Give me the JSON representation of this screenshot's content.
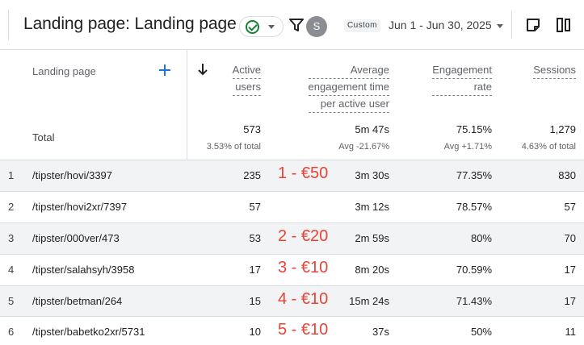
{
  "header": {
    "title": "Landing page: Landing page",
    "avatar_letter": "S",
    "custom_label": "Custom",
    "date_range": "Jun 1 - Jun 30, 2025",
    "accent_color": "#1a73e8",
    "status_color": "#188038"
  },
  "columns": {
    "landing_page": "Landing page",
    "active_users": [
      "Active",
      "users"
    ],
    "avg_engagement": [
      "Average",
      "engagement time",
      "per active user"
    ],
    "engagement_rate": [
      "Engagement",
      "rate"
    ],
    "sessions": [
      "Sessions"
    ]
  },
  "totals": {
    "label": "Total",
    "active_users": "573",
    "active_users_sub": "3.53% of total",
    "avg_engagement": "5m 47s",
    "avg_engagement_sub": "Avg -21.67%",
    "engagement_rate": "75.15%",
    "engagement_rate_sub": "Avg +1.71%",
    "sessions": "1,279",
    "sessions_sub": "4.63% of total"
  },
  "rows": [
    {
      "idx": "1",
      "page": "/tipster/hovi/3397",
      "active_users": "235",
      "annotation": "1 - €50",
      "avg_engagement": "3m 30s",
      "engagement_rate": "77.35%",
      "sessions": "830"
    },
    {
      "idx": "2",
      "page": "/tipster/hovi2xr/7397",
      "active_users": "57",
      "annotation": "",
      "avg_engagement": "3m 12s",
      "engagement_rate": "78.57%",
      "sessions": "57"
    },
    {
      "idx": "3",
      "page": "/tipster/000ver/473",
      "active_users": "53",
      "annotation": "2 - €20",
      "avg_engagement": "2m 59s",
      "engagement_rate": "80%",
      "sessions": "70"
    },
    {
      "idx": "4",
      "page": "/tipster/salahsyh/3958",
      "active_users": "17",
      "annotation": "3 - €10",
      "avg_engagement": "8m 20s",
      "engagement_rate": "70.59%",
      "sessions": "17"
    },
    {
      "idx": "5",
      "page": "/tipster/betman/264",
      "active_users": "15",
      "annotation": "4 - €10",
      "avg_engagement": "15m 24s",
      "engagement_rate": "71.43%",
      "sessions": "17"
    },
    {
      "idx": "6",
      "page": "/tipster/babetko2xr/5731",
      "active_users": "10",
      "annotation": "5 - €10",
      "avg_engagement": "37s",
      "engagement_rate": "50%",
      "sessions": "11"
    }
  ],
  "icons": {
    "status": "check-circle-icon",
    "filter": "filter-icon",
    "note": "note-icon",
    "compare": "compare-columns-icon",
    "add_dimension": "plus-icon",
    "sort": "arrow-down-icon"
  }
}
